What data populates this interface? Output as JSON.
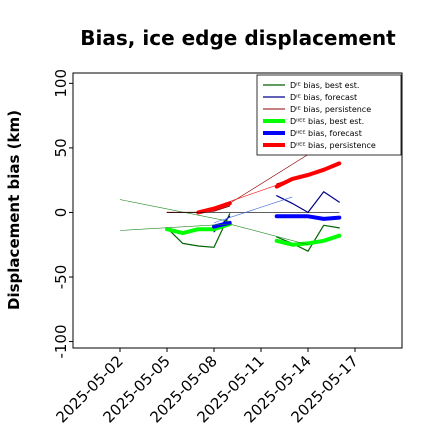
{
  "chart_data": {
    "type": "line",
    "title": "Bias, ice edge displacement",
    "xlabel": "",
    "ylabel": "Displacement bias (km)",
    "ylim": [
      -105,
      108
    ],
    "y_ticks": [
      -100,
      -50,
      0,
      50,
      100
    ],
    "x_ticks": [
      "2025-05-02",
      "2025-05-05",
      "2025-05-08",
      "2025-05-11",
      "2025-05-14",
      "2025-05-17"
    ],
    "x_ticks_highlight": "2025-05-08",
    "highlight_color": "#228b22",
    "grid": false,
    "legend_position": "top-right",
    "series": [
      {
        "name": "Dᴵᴱ bias, best est.",
        "color": "#006400",
        "width": 1.2,
        "points": [
          [
            "2025-05-05",
            -12
          ],
          [
            "2025-05-06",
            -24
          ],
          [
            "2025-05-07",
            -26
          ],
          [
            "2025-05-08",
            -27
          ],
          [
            "2025-05-09",
            -1
          ]
        ],
        "points2": [
          [
            "2025-05-12",
            -19
          ],
          [
            "2025-05-13",
            -24
          ],
          [
            "2025-05-14",
            -30
          ],
          [
            "2025-05-15",
            -10
          ],
          [
            "2025-05-16",
            -12
          ]
        ]
      },
      {
        "name": "Dᴵᴱ bias, forecast",
        "color": "#00008b",
        "width": 1.2,
        "points": [
          [
            "2025-05-08",
            -15
          ],
          [
            "2025-05-09",
            -3
          ]
        ],
        "points2": [
          [
            "2025-05-12",
            13
          ],
          [
            "2025-05-13",
            7
          ],
          [
            "2025-05-14",
            0
          ],
          [
            "2025-05-15",
            16
          ],
          [
            "2025-05-16",
            8
          ]
        ]
      },
      {
        "name": "Dᴵᴱ bias, persistence",
        "color": "#8b0000",
        "width": 1.0,
        "points": [
          [
            "2025-05-05",
            0
          ],
          [
            "2025-05-07",
            0
          ],
          [
            "2025-05-08",
            1
          ],
          [
            "2025-05-09",
            5
          ]
        ],
        "points2": [
          [
            "2025-05-12",
            22
          ],
          [
            "2025-05-13",
            26
          ],
          [
            "2025-05-14",
            29
          ],
          [
            "2025-05-15",
            34
          ],
          [
            "2025-05-16",
            38
          ]
        ]
      },
      {
        "name": "Dᴵᴵᴱᴱ bias, best est.",
        "color": "#00ff00",
        "width": 4,
        "points": [
          [
            "2025-05-05",
            -13
          ],
          [
            "2025-05-06",
            -16
          ],
          [
            "2025-05-07",
            -13
          ],
          [
            "2025-05-08",
            -13
          ],
          [
            "2025-05-09",
            -9
          ]
        ],
        "points2": [
          [
            "2025-05-12",
            -22
          ],
          [
            "2025-05-13",
            -25
          ],
          [
            "2025-05-14",
            -24
          ],
          [
            "2025-05-15",
            -22
          ],
          [
            "2025-05-16",
            -18
          ]
        ]
      },
      {
        "name": "Dᴵᴵᴱᴱ bias, forecast",
        "color": "#0000ff",
        "width": 4,
        "points": [
          [
            "2025-05-08",
            -11
          ],
          [
            "2025-05-09",
            -8
          ]
        ],
        "points2": [
          [
            "2025-05-12",
            -3
          ],
          [
            "2025-05-13",
            -3
          ],
          [
            "2025-05-14",
            -3
          ],
          [
            "2025-05-15",
            -5
          ],
          [
            "2025-05-16",
            -4
          ]
        ]
      },
      {
        "name": "Dᴵᴵᴱᴱ bias, persistence",
        "color": "#ff0000",
        "width": 4,
        "points": [
          [
            "2025-05-07",
            0
          ],
          [
            "2025-05-08",
            3
          ],
          [
            "2025-05-09",
            7
          ]
        ],
        "points2": [
          [
            "2025-05-12",
            20
          ],
          [
            "2025-05-13",
            26
          ],
          [
            "2025-05-14",
            29
          ],
          [
            "2025-05-15",
            33
          ],
          [
            "2025-05-16",
            38
          ]
        ]
      }
    ],
    "thin_lines": [
      {
        "color": "#228b22",
        "from": [
          "2025-05-02",
          10
        ],
        "to": [
          "2025-05-09",
          -7
        ]
      },
      {
        "color": "#228b22",
        "from": [
          "2025-05-02",
          -14
        ],
        "to": [
          "2025-05-09",
          -9
        ]
      },
      {
        "color": "#228b22",
        "from": [
          "2025-05-09",
          -9
        ],
        "to": [
          "2025-05-14",
          -25
        ]
      },
      {
        "color": "#000000",
        "from": [
          "2025-05-05",
          0
        ],
        "to": [
          "2025-05-16",
          0
        ]
      },
      {
        "color": "#4169e1",
        "from": [
          "2025-05-08",
          -8
        ],
        "to": [
          "2025-05-13",
          12
        ]
      },
      {
        "color": "#8b0000",
        "from": [
          "2025-05-09",
          7
        ],
        "to": [
          "2025-05-16",
          60
        ]
      },
      {
        "color": "#ff0000",
        "from": [
          "2025-05-07",
          0
        ],
        "to": [
          "2025-05-16",
          38
        ]
      }
    ]
  }
}
